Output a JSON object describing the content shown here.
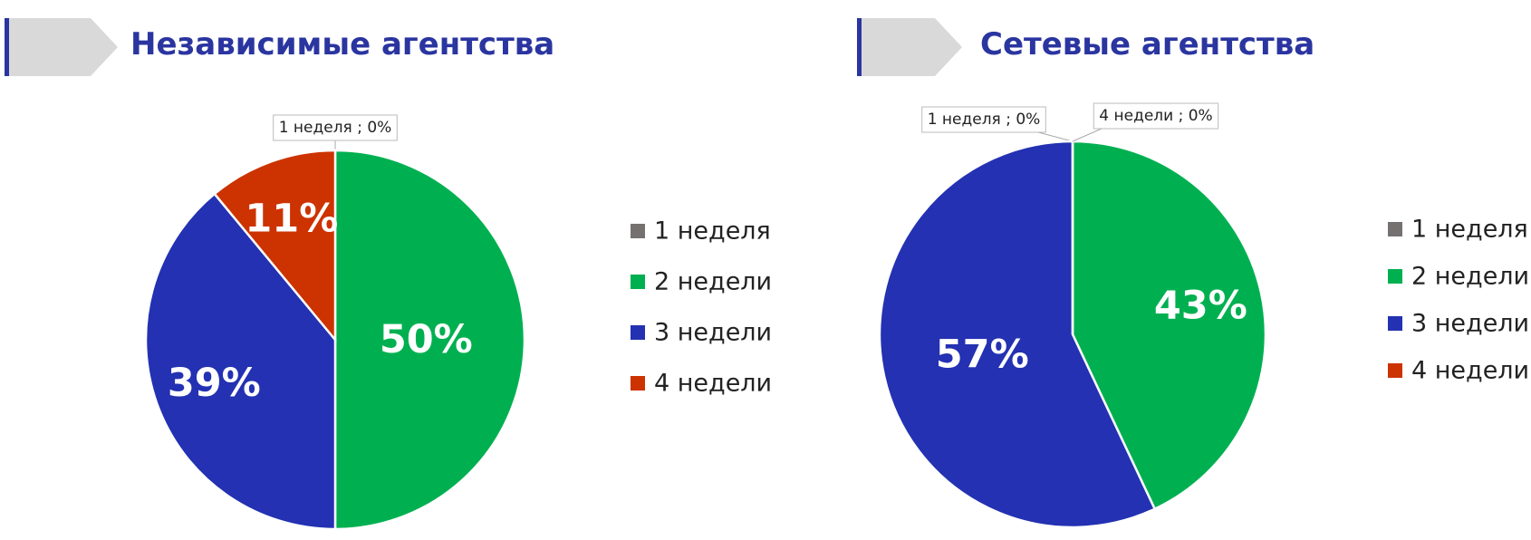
{
  "chart_data": [
    {
      "type": "pie",
      "title": "Независимые агентства",
      "categories": [
        "1 неделя",
        "2 недели",
        "3 недели",
        "4 недели"
      ],
      "values": [
        0,
        50,
        39,
        11
      ],
      "value_labels": [
        "1 неделя ; 0%",
        "50%",
        "39%",
        "11%"
      ],
      "colors": [
        "#767171",
        "#00b050",
        "#2331b2",
        "#cc3300"
      ]
    },
    {
      "type": "pie",
      "title": "Сетевые агентства",
      "categories": [
        "1 неделя",
        "2 недели",
        "3 недели",
        "4 недели"
      ],
      "values": [
        0,
        43,
        57,
        0
      ],
      "value_labels": [
        "1 неделя ; 0%",
        "43%",
        "57%",
        "4 недели ; 0%"
      ],
      "colors": [
        "#767171",
        "#00b050",
        "#2331b2",
        "#cc3300"
      ]
    }
  ]
}
